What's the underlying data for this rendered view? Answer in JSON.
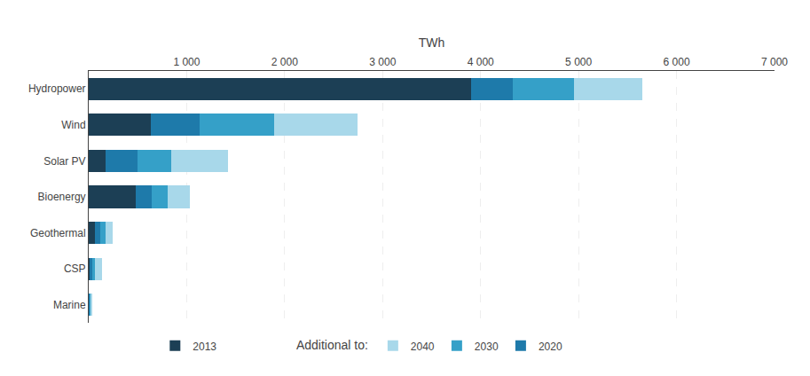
{
  "chart_data": {
    "type": "bar",
    "orientation": "horizontal",
    "stacked": true,
    "categories": [
      "Hydropower",
      "Wind",
      "Solar PV",
      "Bioenergy",
      "Geothermal",
      "CSP",
      "Marine"
    ],
    "series": [
      {
        "name": "2013",
        "color": "#1c3f55",
        "values": [
          3900,
          635,
          170,
          480,
          65,
          18,
          8
        ]
      },
      {
        "name": "2020",
        "color": "#1e7aaa",
        "values": [
          430,
          500,
          330,
          160,
          55,
          18,
          5
        ]
      },
      {
        "name": "2030",
        "color": "#35a0c8",
        "values": [
          620,
          760,
          340,
          165,
          50,
          25,
          8
        ]
      },
      {
        "name": "2040",
        "color": "#a8d8ea",
        "values": [
          700,
          850,
          580,
          230,
          75,
          75,
          10
        ]
      }
    ],
    "x_label": "TWh",
    "annotations": [
      "Additional to:"
    ],
    "xlim": [
      0,
      7000
    ],
    "xticks": [
      {
        "value": 1000,
        "label": "1 000"
      },
      {
        "value": 2000,
        "label": "2 000"
      },
      {
        "value": 3000,
        "label": "3 000"
      },
      {
        "value": 4000,
        "label": "4 000"
      },
      {
        "value": 5000,
        "label": "5 000"
      },
      {
        "value": 6000,
        "label": "6 000"
      },
      {
        "value": 7000,
        "label": "7 000"
      }
    ],
    "grid": true,
    "legend": "bottom"
  }
}
